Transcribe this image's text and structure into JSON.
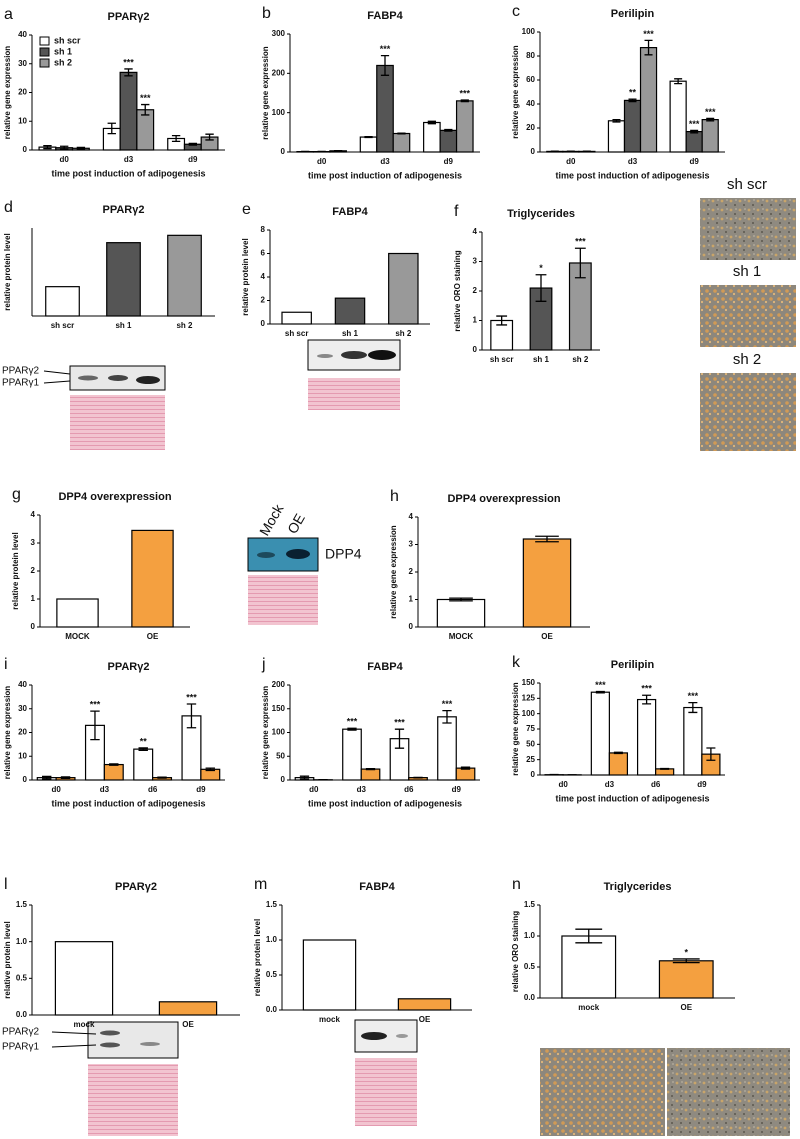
{
  "chart_data": [
    {
      "type": "bar",
      "panel": "a",
      "title": "PPARγ2",
      "categories": [
        "d0",
        "d3",
        "d9"
      ],
      "y_label": "relative gene expression",
      "x_label": "time post induction of adipogenesis",
      "ylim": [
        0,
        40
      ],
      "yticks": [
        0,
        10,
        20,
        30,
        40
      ],
      "series": [
        {
          "name": "sh scr",
          "color": "#ffffff",
          "values": [
            1,
            7.5,
            4
          ],
          "errors": [
            0.5,
            1.8,
            1
          ],
          "annotations": [
            null,
            null,
            null
          ]
        },
        {
          "name": "sh 1",
          "color": "#555555",
          "values": [
            0.8,
            27,
            2
          ],
          "errors": [
            0.5,
            1.2,
            0.3
          ],
          "annotations": [
            null,
            "***",
            null
          ]
        },
        {
          "name": "sh 2",
          "color": "#999999",
          "values": [
            0.6,
            14,
            4.5
          ],
          "errors": [
            0.3,
            1.8,
            1
          ],
          "annotations": [
            null,
            "***",
            null
          ]
        }
      ]
    },
    {
      "type": "bar",
      "panel": "b",
      "title": "FABP4",
      "categories": [
        "d0",
        "d3",
        "d9"
      ],
      "y_label": "relative gene expression",
      "x_label": "time post induction of adipogenesis",
      "ylim": [
        0,
        300
      ],
      "yticks": [
        0,
        100,
        200,
        300
      ],
      "series": [
        {
          "color": "#ffffff",
          "values": [
            1,
            38,
            75
          ],
          "errors": [
            0.5,
            1,
            3
          ],
          "annotations": [
            null,
            null,
            null
          ]
        },
        {
          "color": "#555555",
          "values": [
            1,
            220,
            55
          ],
          "errors": [
            0.5,
            25,
            2
          ],
          "annotations": [
            null,
            "***",
            null
          ]
        },
        {
          "color": "#999999",
          "values": [
            3,
            47,
            130
          ],
          "errors": [
            0.5,
            1,
            2
          ],
          "annotations": [
            null,
            null,
            "***"
          ]
        }
      ]
    },
    {
      "type": "bar",
      "panel": "c",
      "title": "Perilipin",
      "categories": [
        "d0",
        "d3",
        "d9"
      ],
      "y_label": "relative gene expression",
      "x_label": "time post induction of adipogenesis",
      "ylim": [
        0,
        100
      ],
      "yticks": [
        0,
        20,
        40,
        60,
        80,
        100
      ],
      "series": [
        {
          "color": "#ffffff",
          "values": [
            0.5,
            26,
            59
          ],
          "errors": [
            0.2,
            1,
            2
          ],
          "annotations": [
            null,
            null,
            null
          ]
        },
        {
          "color": "#555555",
          "values": [
            0.5,
            43,
            17
          ],
          "errors": [
            0.2,
            1,
            1
          ],
          "annotations": [
            null,
            "**",
            "***"
          ]
        },
        {
          "color": "#999999",
          "values": [
            0.5,
            87,
            27
          ],
          "errors": [
            0.2,
            6,
            1
          ],
          "annotations": [
            null,
            "***",
            "***"
          ]
        }
      ]
    },
    {
      "type": "bar",
      "panel": "d",
      "title": "PPARγ2",
      "categories": [
        "sh scr",
        "sh 1",
        "sh 2"
      ],
      "y_label": "relative protein level",
      "ylim": [
        0,
        3
      ],
      "values": [
        1,
        2.5,
        2.75
      ],
      "colors": [
        "#ffffff",
        "#555555",
        "#999999"
      ],
      "blot_labels": [
        "PPARγ2",
        "PPARγ1"
      ]
    },
    {
      "type": "bar",
      "panel": "e",
      "title": "FABP4",
      "categories": [
        "sh scr",
        "sh 1",
        "sh 2"
      ],
      "y_label": "relative protein level",
      "ylim": [
        0,
        8
      ],
      "yticks": [
        0,
        2,
        4,
        6,
        8
      ],
      "values": [
        1,
        2.2,
        6
      ],
      "colors": [
        "#ffffff",
        "#555555",
        "#999999"
      ]
    },
    {
      "type": "bar",
      "panel": "f",
      "title": "Triglycerides",
      "categories": [
        "sh scr",
        "sh 1",
        "sh 2"
      ],
      "y_label": "relative ORO staining",
      "ylim": [
        0,
        4
      ],
      "yticks": [
        0,
        1,
        2,
        3,
        4
      ],
      "values": [
        1,
        2.1,
        2.95
      ],
      "errors": [
        0.15,
        0.45,
        0.5
      ],
      "annotations": [
        null,
        "*",
        "***"
      ],
      "colors": [
        "#ffffff",
        "#555555",
        "#999999"
      ],
      "micrograph_labels": [
        "sh scr",
        "sh 1",
        "sh 2"
      ]
    },
    {
      "type": "bar",
      "panel": "g",
      "title": "DPP4 overexpression",
      "categories": [
        "MOCK",
        "OE"
      ],
      "y_label": "relative protein level",
      "ylim": [
        0,
        4
      ],
      "yticks": [
        0,
        1,
        2,
        3,
        4
      ],
      "values": [
        1,
        3.45
      ],
      "colors": [
        "#ffffff",
        "#f4a040"
      ],
      "blot_lanes": [
        "Mock",
        "OE"
      ],
      "blot_target": "DPP4"
    },
    {
      "type": "bar",
      "panel": "h",
      "title": "DPP4 overexpression",
      "categories": [
        "MOCK",
        "OE"
      ],
      "y_label": "relative gene expression",
      "ylim": [
        0,
        4
      ],
      "yticks": [
        0,
        1,
        2,
        3,
        4
      ],
      "values": [
        1,
        3.2
      ],
      "errors": [
        0.05,
        0.1
      ],
      "colors": [
        "#ffffff",
        "#f4a040"
      ]
    },
    {
      "type": "bar",
      "panel": "i",
      "title": "PPARγ2",
      "categories": [
        "d0",
        "d3",
        "d6",
        "d9"
      ],
      "y_label": "relative gene expression",
      "x_label": "time post induction of adipogenesis",
      "ylim": [
        0,
        40
      ],
      "yticks": [
        0,
        10,
        20,
        30,
        40
      ],
      "series": [
        {
          "color": "#ffffff",
          "values": [
            1,
            23,
            13,
            27
          ],
          "errors": [
            0.5,
            6,
            0.5,
            5
          ],
          "annotations": [
            null,
            "***",
            "**",
            "***"
          ]
        },
        {
          "color": "#f4a040",
          "values": [
            1,
            6.5,
            1,
            4.5
          ],
          "errors": [
            0.3,
            0.3,
            0.2,
            0.5
          ],
          "annotations": [
            null,
            null,
            null,
            null
          ]
        }
      ]
    },
    {
      "type": "bar",
      "panel": "j",
      "title": "FABP4",
      "categories": [
        "d0",
        "d3",
        "d6",
        "d9"
      ],
      "y_label": "relative gene expression",
      "x_label": "time post induction of adipogenesis",
      "ylim": [
        0,
        200
      ],
      "yticks": [
        0,
        50,
        100,
        150,
        200
      ],
      "series": [
        {
          "color": "#ffffff",
          "values": [
            5,
            107,
            87,
            133
          ],
          "errors": [
            3,
            2,
            20,
            13
          ],
          "annotations": [
            null,
            "***",
            "***",
            "***"
          ]
        },
        {
          "color": "#f4a040",
          "values": [
            0.5,
            23,
            5,
            25
          ],
          "errors": [
            0.3,
            1,
            0.5,
            2
          ],
          "annotations": [
            null,
            null,
            null,
            null
          ]
        }
      ]
    },
    {
      "type": "bar",
      "panel": "k",
      "title": "Perilipin",
      "categories": [
        "d0",
        "d3",
        "d6",
        "d9"
      ],
      "y_label": "relative gene expression",
      "x_label": "time post induction of adipogenesis",
      "ylim": [
        0,
        150
      ],
      "yticks": [
        0,
        25,
        50,
        75,
        100,
        125,
        150
      ],
      "series": [
        {
          "color": "#ffffff",
          "values": [
            0.5,
            135,
            123,
            110
          ],
          "errors": [
            0.2,
            1,
            7,
            8
          ],
          "annotations": [
            null,
            "***",
            "***",
            "***"
          ]
        },
        {
          "color": "#f4a040",
          "values": [
            0.3,
            36,
            10,
            34
          ],
          "errors": [
            0.1,
            1,
            0.5,
            10
          ],
          "annotations": [
            null,
            null,
            null,
            null
          ]
        }
      ]
    },
    {
      "type": "bar",
      "panel": "l",
      "title": "PPARγ2",
      "categories": [
        "mock",
        "OE"
      ],
      "y_label": "relative protein level",
      "ylim": [
        0,
        1.5
      ],
      "yticks": [
        {
          "value": 0,
          "label": "0.0"
        },
        0.5,
        {
          "value": 1,
          "label": "1.0"
        },
        1.5
      ],
      "values": [
        1,
        0.18
      ],
      "colors": [
        "#ffffff",
        "#f4a040"
      ],
      "blot_labels": [
        "PPARγ2",
        "PPARγ1"
      ]
    },
    {
      "type": "bar",
      "panel": "m",
      "title": "FABP4",
      "categories": [
        "mock",
        "OE"
      ],
      "y_label": "relative protein level",
      "ylim": [
        0,
        1.5
      ],
      "yticks": [
        {
          "value": 0,
          "label": "0.0"
        },
        0.5,
        {
          "value": 1,
          "label": "1.0"
        },
        1.5
      ],
      "values": [
        1,
        0.16
      ],
      "colors": [
        "#ffffff",
        "#f4a040"
      ]
    },
    {
      "type": "bar",
      "panel": "n",
      "title": "Triglycerides",
      "categories": [
        "mock",
        "OE"
      ],
      "y_label": "relative ORO staining",
      "ylim": [
        0,
        1.5
      ],
      "yticks": [
        {
          "value": 0,
          "label": "0.0"
        },
        0.5,
        {
          "value": 1,
          "label": "1.0"
        },
        1.5
      ],
      "values": [
        1,
        0.6
      ],
      "errors": [
        0.11,
        0.03
      ],
      "annotations": [
        null,
        "*"
      ],
      "colors": [
        "#ffffff",
        "#f4a040"
      ]
    }
  ]
}
